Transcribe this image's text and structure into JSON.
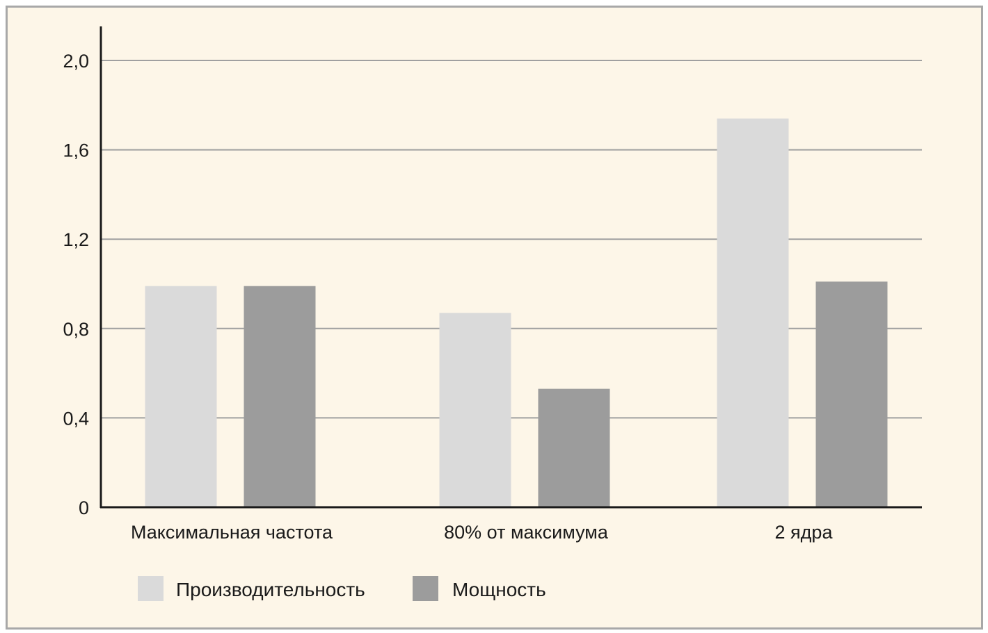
{
  "chart_data": {
    "type": "bar",
    "categories": [
      "Максимальная частота",
      "80% от максимума",
      "2 ядра"
    ],
    "series": [
      {
        "name": "Производительность",
        "values": [
          0.99,
          0.87,
          1.74
        ],
        "color": "#dadada"
      },
      {
        "name": "Мощность",
        "values": [
          0.99,
          0.53,
          1.01
        ],
        "color": "#9c9c9c"
      }
    ],
    "ylim": [
      0,
      2.0
    ],
    "yticks": [
      0,
      0.4,
      0.8,
      1.2,
      1.6,
      2.0
    ],
    "ytick_labels": [
      "0",
      "0,4",
      "0,8",
      "1,2",
      "1,6",
      "2,0"
    ],
    "title": "",
    "xlabel": "",
    "ylabel": "",
    "grid": true,
    "legend_position": "bottom-left"
  },
  "colors": {
    "background": "#fdf6e8",
    "border": "#a8a8a8",
    "gridline": "#a0a0a0",
    "axis": "#1a1a1a"
  }
}
